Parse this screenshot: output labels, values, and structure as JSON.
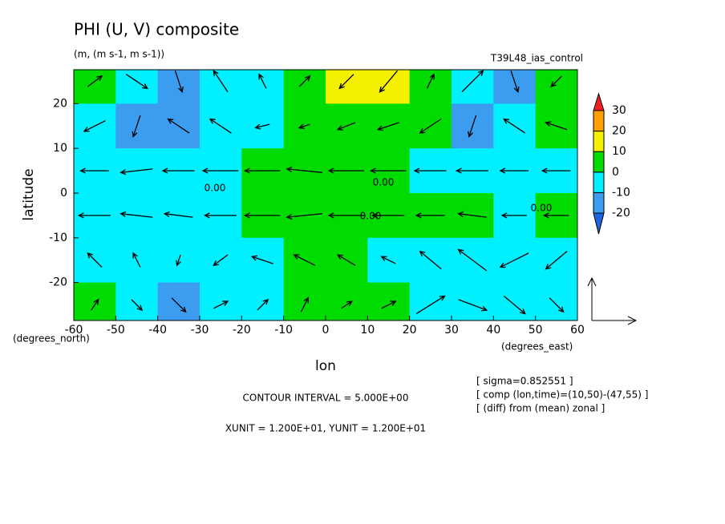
{
  "chart_data": {
    "type": "contour-vector",
    "title": "PHI (U, V) composite",
    "subtitle": "(m, (m s-1, m s-1))",
    "run_label": "T39L48_ias_control",
    "xlabel": "lon",
    "ylabel": "latitude",
    "xunit_label": "(degrees_east)",
    "yunit_label": "(degrees_north)",
    "contour_interval": "CONTOUR INTERVAL = 5.000E+00",
    "vector_units": "XUNIT = 1.200E+01, YUNIT = 1.200E+01",
    "notes": [
      "[ sigma=0.852551 ]",
      "[ comp (lon,time)=(10,50)-(47,55) ]",
      "[ (diff) from (mean) zonal ]"
    ],
    "contour_labels": [
      "0.00",
      "0.00",
      "0.00",
      "0.00"
    ],
    "xlim": [
      -60,
      60
    ],
    "ylim": [
      -28.5,
      27.6
    ],
    "xticks": [
      -60,
      -50,
      -40,
      -30,
      -20,
      -10,
      0,
      10,
      20,
      30,
      40,
      50,
      60
    ],
    "yticks": [
      -20,
      -10,
      0,
      10,
      20
    ],
    "levels": [
      -20,
      -10,
      0,
      10,
      20,
      30
    ],
    "colors": [
      "#1c64e0",
      "#3c9cf0",
      "#00f0ff",
      "#00dc00",
      "#f5f000",
      "#ffa000",
      "#f02020"
    ],
    "lon": [
      -55,
      -45,
      -35,
      -25,
      -15,
      -5,
      5,
      15,
      25,
      35,
      45,
      55
    ],
    "lat": [
      25,
      15,
      5,
      -5,
      -15,
      -25
    ],
    "values": [
      [
        2,
        -6,
        -12,
        -8,
        -4,
        4,
        12,
        11,
        3,
        -8,
        -16,
        2
      ],
      [
        -5,
        -12,
        -12,
        -5,
        -2,
        4,
        4,
        4,
        2,
        -12,
        -10,
        3
      ],
      [
        -5,
        -4,
        -3,
        -2,
        2,
        5,
        4,
        3,
        -2,
        -3,
        -3,
        -2
      ],
      [
        -3,
        -3,
        -3,
        -2,
        3,
        4,
        4,
        3,
        3,
        2,
        -2,
        2
      ],
      [
        -4,
        -5,
        -5,
        -4,
        -2,
        4,
        5,
        -2,
        -3,
        -8,
        -10,
        -4
      ],
      [
        2,
        -6,
        -12,
        -9,
        -3,
        2,
        8,
        3,
        -3,
        -8,
        -6,
        -2
      ]
    ],
    "u": [
      [
        4,
        6,
        2,
        -4,
        -2,
        3,
        -4,
        -5,
        2,
        6,
        2,
        -3
      ],
      [
        -6,
        -2,
        -6,
        -6,
        -4,
        -3,
        -5,
        -6,
        -6,
        -2,
        -6,
        -6
      ],
      [
        -8,
        -9,
        -9,
        -10,
        -10,
        -10,
        -10,
        -10,
        -9,
        -9,
        -8,
        -8
      ],
      [
        -9,
        -9,
        -8,
        -9,
        -10,
        -10,
        -10,
        -9,
        -8,
        -8,
        -7,
        -7
      ],
      [
        -4,
        -2,
        -1,
        -4,
        -6,
        -6,
        -5,
        -4,
        -6,
        -8,
        -8,
        -6
      ],
      [
        2,
        3,
        4,
        4,
        3,
        2,
        3,
        4,
        8,
        8,
        6,
        4
      ]
    ],
    "v": [
      [
        3,
        -4,
        -6,
        6,
        4,
        3,
        -4,
        -6,
        4,
        6,
        -6,
        -3
      ],
      [
        -3,
        -6,
        4,
        4,
        -1,
        -1,
        -2,
        -2,
        -4,
        -6,
        4,
        2
      ],
      [
        0,
        -1,
        0,
        0,
        0,
        1,
        0,
        0,
        0,
        0,
        0,
        0
      ],
      [
        0,
        1,
        1,
        0,
        0,
        -1,
        0,
        0,
        0,
        1,
        0,
        0
      ],
      [
        4,
        4,
        -3,
        -3,
        2,
        3,
        3,
        2,
        5,
        6,
        -4,
        -5
      ],
      [
        3,
        -3,
        -4,
        2,
        3,
        4,
        2,
        2,
        5,
        -3,
        -5,
        -4
      ]
    ]
  }
}
